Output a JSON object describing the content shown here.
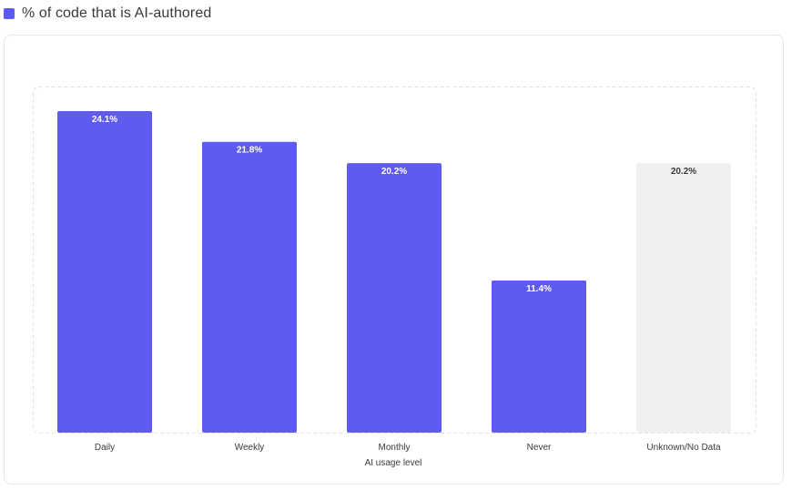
{
  "legend": {
    "label": "% of code that is AI-authored",
    "color": "#5f5af0"
  },
  "chart_data": {
    "type": "bar",
    "categories": [
      "Daily",
      "Weekly",
      "Monthly",
      "Never",
      "Unknown/No Data"
    ],
    "values": [
      24.1,
      21.8,
      20.2,
      11.4,
      20.2
    ],
    "value_labels": [
      "24.1%",
      "21.8%",
      "20.2%",
      "11.4%",
      "20.2%"
    ],
    "bar_colors": [
      "#5f5af0",
      "#5f5af0",
      "#5f5af0",
      "#5f5af0",
      "#f0f0f0"
    ],
    "label_colors": [
      "#ffffff",
      "#ffffff",
      "#ffffff",
      "#ffffff",
      "#3a3a3a"
    ],
    "xlabel": "AI usage level",
    "ylabel": "",
    "ylim": [
      0,
      24.1
    ],
    "grid": false,
    "legend_position": "top-left"
  }
}
